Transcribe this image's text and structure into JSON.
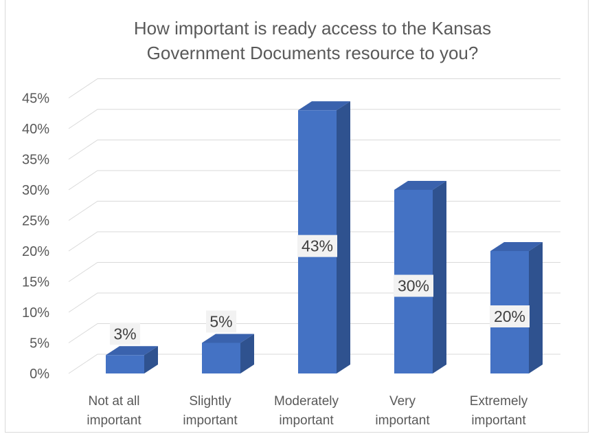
{
  "chart_data": {
    "type": "bar",
    "title_lines": [
      "How important is ready access to the Kansas",
      "Government Documents resource to you?"
    ],
    "categories": [
      [
        "Not at all",
        "important"
      ],
      [
        "Slightly",
        "important"
      ],
      [
        "Moderately",
        "important"
      ],
      [
        "Very",
        "important"
      ],
      [
        "Extremely",
        "important"
      ]
    ],
    "values": [
      3,
      5,
      43,
      30,
      20
    ],
    "data_labels": [
      "3%",
      "5%",
      "43%",
      "30%",
      "20%"
    ],
    "ylim": [
      0,
      45
    ],
    "yticks": [
      0,
      5,
      10,
      15,
      20,
      25,
      30,
      35,
      40,
      45
    ],
    "ytick_labels": [
      "0%",
      "5%",
      "10%",
      "15%",
      "20%",
      "25%",
      "30%",
      "35%",
      "40%",
      "45%"
    ],
    "grid": true,
    "style": "3d-column",
    "colors": {
      "bar_front": "#4472C4",
      "bar_side": "#2F528F",
      "bar_top": "#3A62AD",
      "grid": "#D9D9D9",
      "text": "#595959",
      "label_bg": "#F2F2F2"
    }
  }
}
